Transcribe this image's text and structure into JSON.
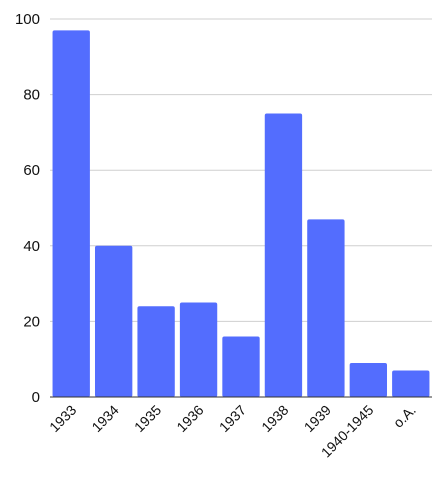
{
  "chart_data": {
    "type": "bar",
    "title": "",
    "xlabel": "",
    "ylabel": "",
    "categories": [
      "1933",
      "1934",
      "1935",
      "1936",
      "1937",
      "1938",
      "1939",
      "1940-1945",
      "o.A."
    ],
    "values": [
      97,
      40,
      24,
      25,
      16,
      75,
      47,
      9,
      7
    ],
    "ylim": [
      0,
      100
    ],
    "yticks": [
      0,
      20,
      40,
      60,
      80,
      100
    ],
    "grid": true,
    "legend": "none",
    "bar_color": "#536dfe",
    "grid_color": "#cfcfcf"
  }
}
